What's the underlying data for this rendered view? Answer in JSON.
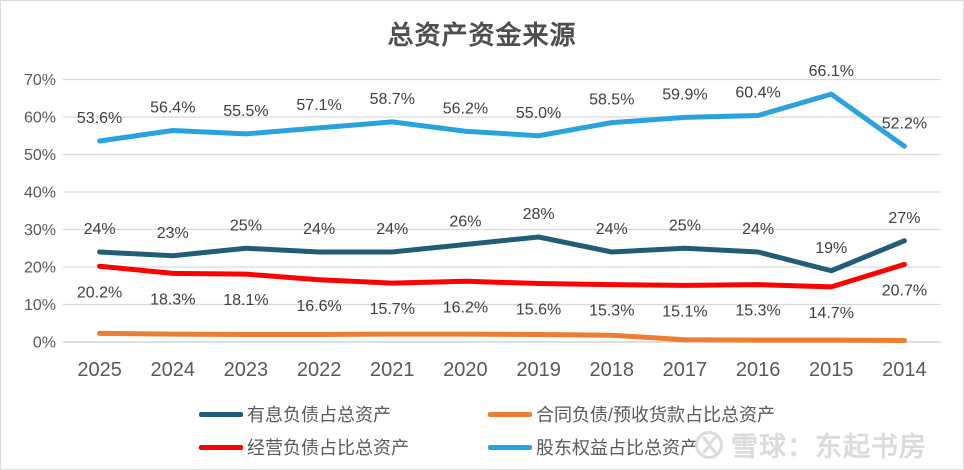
{
  "title": "总资产资金来源",
  "watermark": {
    "logo_name": "xueqiu-logo",
    "text": "雪球：东起书房"
  },
  "chart_data": {
    "type": "line",
    "title": "总资产资金来源",
    "categories": [
      "2025",
      "2024",
      "2023",
      "2022",
      "2021",
      "2020",
      "2019",
      "2018",
      "2017",
      "2016",
      "2015",
      "2014"
    ],
    "y_ticks": [
      "70%",
      "60%",
      "50%",
      "40%",
      "30%",
      "20%",
      "10%",
      "0%"
    ],
    "ylim": [
      0,
      70
    ],
    "grid": true,
    "legend_position": "bottom",
    "series": [
      {
        "name": "有息负债占总资产",
        "color": "#215d76",
        "values": [
          24,
          23,
          25,
          24,
          24,
          26,
          28,
          24,
          25,
          24,
          19,
          27
        ],
        "labels": [
          "24%",
          "23%",
          "25%",
          "24%",
          "24%",
          "26%",
          "28%",
          "24%",
          "25%",
          "24%",
          "19%",
          "27%"
        ],
        "label_position": "above"
      },
      {
        "name": "经营负债占比总资产",
        "color": "#fe0000",
        "values": [
          20.2,
          18.3,
          18.1,
          16.6,
          15.7,
          16.2,
          15.6,
          15.3,
          15.1,
          15.3,
          14.7,
          20.7
        ],
        "labels": [
          "20.2%",
          "18.3%",
          "18.1%",
          "16.6%",
          "15.7%",
          "16.2%",
          "15.6%",
          "15.3%",
          "15.1%",
          "15.3%",
          "14.7%",
          "20.7%"
        ],
        "label_position": "below"
      },
      {
        "name": "合同负债/预收货款占比总资产",
        "color": "#ed7d31",
        "values": [
          2.3,
          2.1,
          2.0,
          2.0,
          2.1,
          2.1,
          2.0,
          1.8,
          0.6,
          0.5,
          0.5,
          0.4
        ],
        "labels": null,
        "label_position": "none"
      },
      {
        "name": "股东权益占比总资产",
        "color": "#29a3dc",
        "values": [
          53.6,
          56.4,
          55.5,
          57.1,
          58.7,
          56.2,
          55.0,
          58.5,
          59.9,
          60.4,
          66.1,
          52.2
        ],
        "labels": [
          "53.6%",
          "56.4%",
          "55.5%",
          "57.1%",
          "58.7%",
          "56.2%",
          "55.0%",
          "58.5%",
          "59.9%",
          "60.4%",
          "66.1%",
          "52.2%"
        ],
        "label_position": "above"
      }
    ]
  }
}
